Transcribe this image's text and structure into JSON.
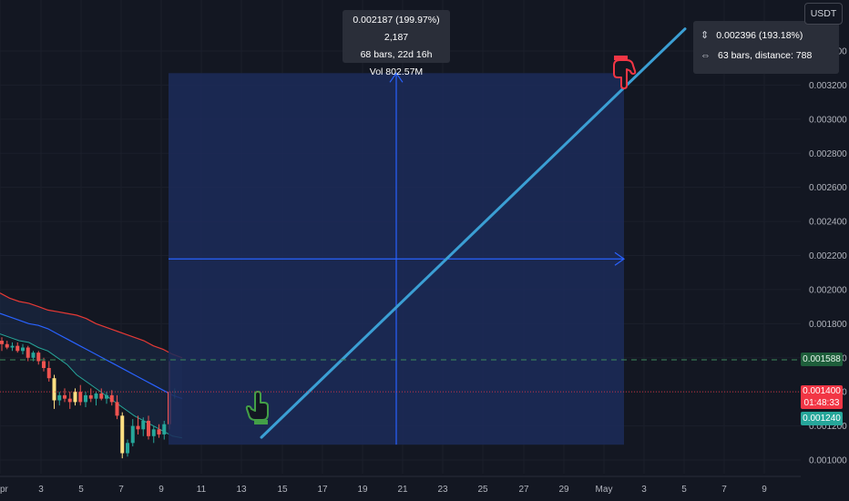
{
  "colors": {
    "background": "#131722",
    "projection_fill": "#1c2b59",
    "arrow": "#2962ff",
    "trend_line": "#3b9fd4",
    "bb_upper": "#e53935",
    "bb_lower": "#1e88e5",
    "bb_mid": "#2962ff",
    "bb_fill": "#1c2b4a",
    "candle_up": "#26a69a",
    "candle_down": "#ef5350",
    "volume_highlight": "#ffe082",
    "green_dashed": "#3c8b5a",
    "red_dotted": "#f23645"
  },
  "price_axis": {
    "currency": "USDT",
    "labels": [
      "0.003400",
      "0.003200",
      "0.003000",
      "0.002800",
      "0.002600",
      "0.002400",
      "0.002200",
      "0.002000",
      "0.001800",
      "0.001600",
      "0.001400",
      "0.001200",
      "0.001000"
    ],
    "values": [
      0.0034,
      0.0032,
      0.003,
      0.0028,
      0.0026,
      0.0024,
      0.0022,
      0.002,
      0.0018,
      0.0016,
      0.0014,
      0.0012,
      0.001
    ],
    "tags": {
      "green": "0.001588",
      "red_price": "0.001400",
      "red_countdown": "01:48:33",
      "cyan": "0.001240"
    }
  },
  "time_axis": {
    "labels": [
      "pr",
      "3",
      "5",
      "7",
      "9",
      "11",
      "13",
      "15",
      "17",
      "19",
      "21",
      "23",
      "25",
      "27",
      "29",
      "May",
      "3",
      "5",
      "7",
      "9"
    ],
    "x": [
      0,
      45,
      89,
      133,
      177,
      221,
      265,
      310,
      354,
      398,
      442,
      486,
      530,
      575,
      619,
      663,
      707,
      751,
      795,
      839
    ]
  },
  "tooltip_center": {
    "line1": "0.002187 (199.97%) 2,187",
    "line2": "68 bars, 22d 16h",
    "line3": "Vol 802.57M"
  },
  "tooltip_right": {
    "line1": "0.002396 (193.18%)",
    "line2": "63 bars, distance: 788",
    "range_icon": "vertical-range-icon",
    "bars_icon": "horizontal-range-icon"
  },
  "icons": {
    "start": "green-hand-pointer-icon",
    "end": "red-hand-pointer-icon"
  },
  "candles": [
    {
      "o": 0.0017,
      "h": 0.00172,
      "l": 0.00164,
      "c": 0.00168
    },
    {
      "o": 0.00168,
      "h": 0.0017,
      "l": 0.00165,
      "c": 0.00166
    },
    {
      "o": 0.00166,
      "h": 0.00169,
      "l": 0.00164,
      "c": 0.00167
    },
    {
      "o": 0.00167,
      "h": 0.00169,
      "l": 0.00163,
      "c": 0.00164
    },
    {
      "o": 0.00164,
      "h": 0.00168,
      "l": 0.00162,
      "c": 0.00166
    },
    {
      "o": 0.00166,
      "h": 0.00167,
      "l": 0.00158,
      "c": 0.0016
    },
    {
      "o": 0.0016,
      "h": 0.00164,
      "l": 0.00158,
      "c": 0.00163
    },
    {
      "o": 0.00163,
      "h": 0.00164,
      "l": 0.00156,
      "c": 0.00158
    },
    {
      "o": 0.00158,
      "h": 0.0016,
      "l": 0.00152,
      "c": 0.00154
    },
    {
      "o": 0.00154,
      "h": 0.00158,
      "l": 0.00146,
      "c": 0.00148
    },
    {
      "o": 0.00148,
      "h": 0.0015,
      "l": 0.0013,
      "c": 0.00135
    },
    {
      "o": 0.00135,
      "h": 0.0014,
      "l": 0.00132,
      "c": 0.00138
    },
    {
      "o": 0.00138,
      "h": 0.00142,
      "l": 0.00134,
      "c": 0.00136
    },
    {
      "o": 0.00136,
      "h": 0.0014,
      "l": 0.0013,
      "c": 0.00134
    },
    {
      "o": 0.00134,
      "h": 0.00142,
      "l": 0.00132,
      "c": 0.0014
    },
    {
      "o": 0.0014,
      "h": 0.00144,
      "l": 0.00132,
      "c": 0.00134
    },
    {
      "o": 0.00134,
      "h": 0.0014,
      "l": 0.00131,
      "c": 0.00138
    },
    {
      "o": 0.00138,
      "h": 0.00142,
      "l": 0.00134,
      "c": 0.00136
    },
    {
      "o": 0.00136,
      "h": 0.0014,
      "l": 0.00132,
      "c": 0.00139
    },
    {
      "o": 0.00139,
      "h": 0.00142,
      "l": 0.00135,
      "c": 0.00136
    },
    {
      "o": 0.00136,
      "h": 0.0014,
      "l": 0.00133,
      "c": 0.00138
    },
    {
      "o": 0.00138,
      "h": 0.00141,
      "l": 0.00132,
      "c": 0.00134
    },
    {
      "o": 0.00134,
      "h": 0.00138,
      "l": 0.00124,
      "c": 0.00126
    },
    {
      "o": 0.00126,
      "h": 0.00128,
      "l": 0.00101,
      "c": 0.00104
    },
    {
      "o": 0.00104,
      "h": 0.00112,
      "l": 0.00102,
      "c": 0.0011
    },
    {
      "o": 0.0011,
      "h": 0.00124,
      "l": 0.00108,
      "c": 0.0012
    },
    {
      "o": 0.0012,
      "h": 0.00126,
      "l": 0.00115,
      "c": 0.00118
    },
    {
      "o": 0.00118,
      "h": 0.00125,
      "l": 0.00114,
      "c": 0.00123
    },
    {
      "o": 0.00123,
      "h": 0.00126,
      "l": 0.00112,
      "c": 0.00114
    },
    {
      "o": 0.00114,
      "h": 0.0012,
      "l": 0.0011,
      "c": 0.00118
    },
    {
      "o": 0.00118,
      "h": 0.00121,
      "l": 0.00113,
      "c": 0.00115
    },
    {
      "o": 0.00115,
      "h": 0.00123,
      "l": 0.00112,
      "c": 0.00121
    },
    {
      "o": 0.00121,
      "h": 0.00158,
      "l": 0.00118,
      "c": 0.0014
    },
    {
      "o": 0.0014,
      "h": 0.00142,
      "l": 0.00136,
      "c": 0.0014
    }
  ],
  "projection": {
    "start_price": 0.00109,
    "end_price": 0.00327,
    "mid_price": 0.00218,
    "start_x_label_index": 4,
    "trend_start_price": 0.001133,
    "trend_end_price": 0.00353
  },
  "bollinger": {
    "upper": [
      0.00198,
      0.00195,
      0.00193,
      0.00192,
      0.0019,
      0.00188,
      0.00187,
      0.00186,
      0.00185,
      0.00183,
      0.0018,
      0.00178,
      0.00176,
      0.00174,
      0.00172,
      0.0017,
      0.00167,
      0.00165,
      0.00162,
      0.0016
    ],
    "lower": [
      0.00174,
      0.00172,
      0.0017,
      0.00169,
      0.00166,
      0.00164,
      0.0016,
      0.00156,
      0.0015,
      0.00146,
      0.00142,
      0.00138,
      0.00134,
      0.0013,
      0.00126,
      0.00123,
      0.0012,
      0.00117,
      0.00114,
      0.00113
    ],
    "mid": [
      0.00186,
      0.00184,
      0.00182,
      0.0018,
      0.00179,
      0.00177,
      0.00174,
      0.00171,
      0.00168,
      0.00165,
      0.00162,
      0.00159,
      0.00156,
      0.00153,
      0.0015,
      0.00147,
      0.00144,
      0.00141,
      0.00138,
      0.00136
    ]
  }
}
